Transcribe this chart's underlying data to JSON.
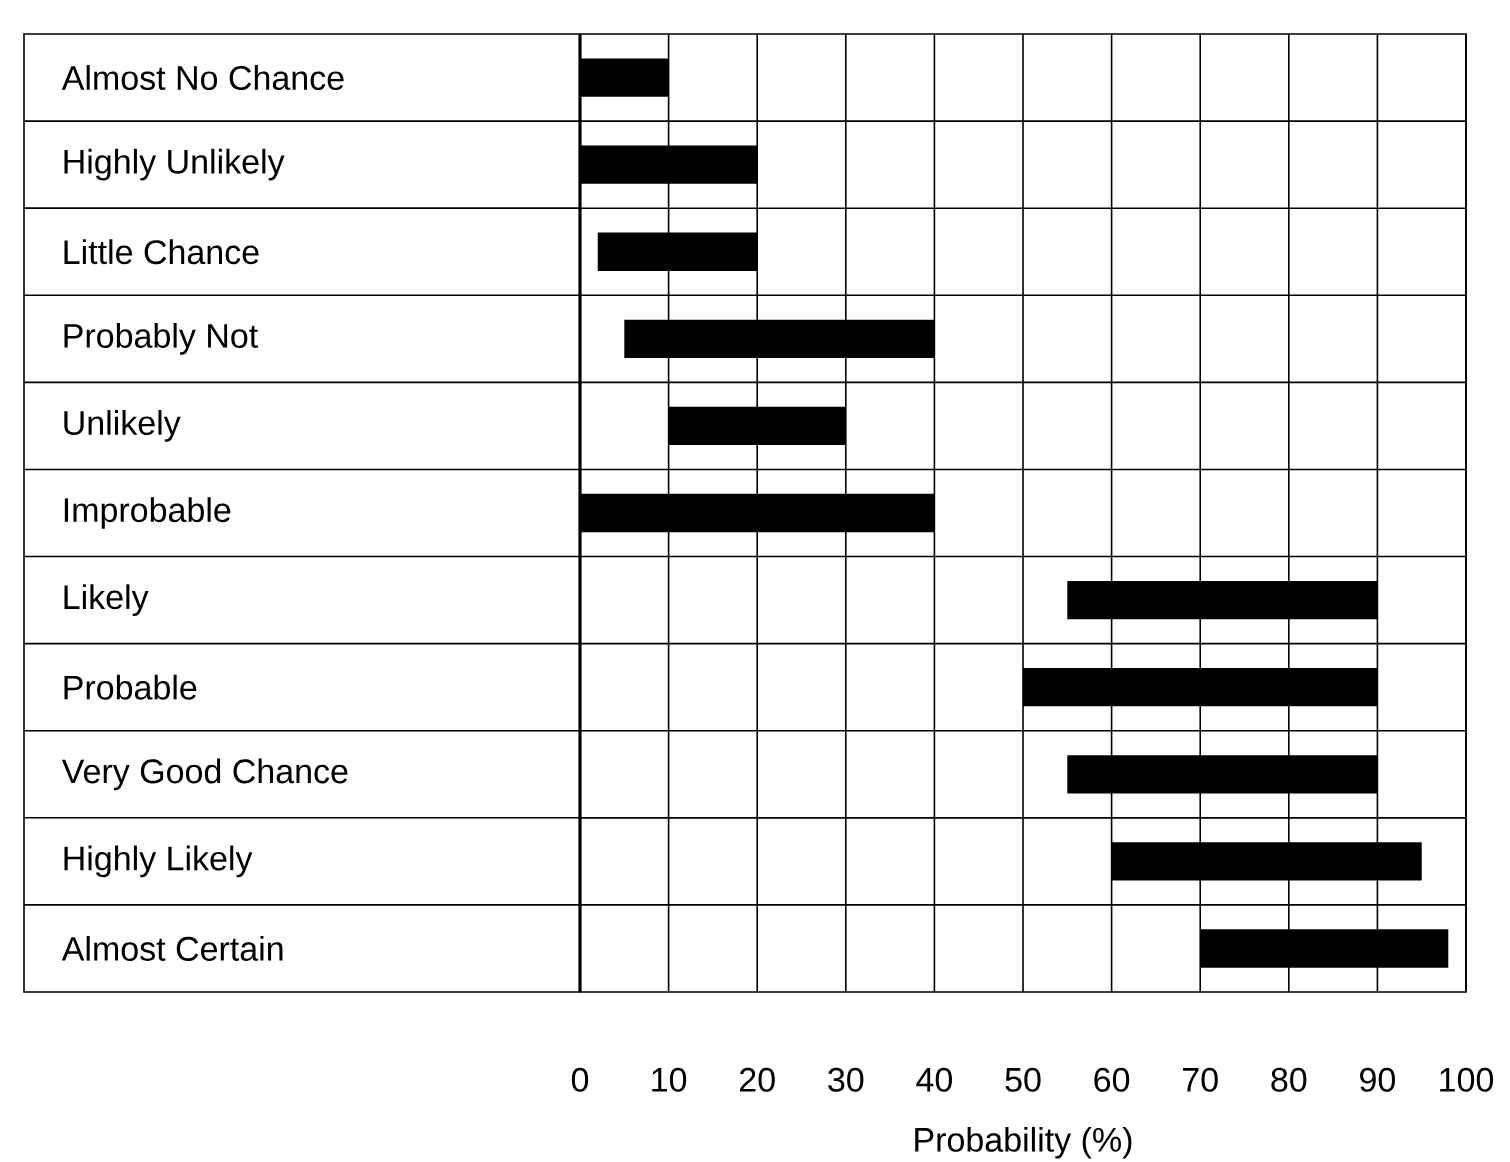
{
  "chart_data": {
    "type": "bar",
    "orientation": "horizontal",
    "xlabel": "Probability (%)",
    "categories": [
      "Almost No Chance",
      "Highly Unlikely",
      "Little Chance",
      "Probably Not",
      "Unlikely",
      "Improbable",
      "Likely",
      "Probable",
      "Very Good Chance",
      "Highly Likely",
      "Almost Certain"
    ],
    "base": [
      0,
      0,
      2,
      5,
      10,
      0,
      55,
      50,
      55,
      60,
      70
    ],
    "values": [
      10,
      20,
      18,
      35,
      20,
      40,
      35,
      40,
      35,
      35,
      28
    ],
    "color": "#000000",
    "xlim": [
      0,
      100
    ],
    "xticks": [
      0,
      10,
      20,
      30,
      40,
      50,
      60,
      70,
      80,
      90,
      100
    ],
    "grid": true
  }
}
